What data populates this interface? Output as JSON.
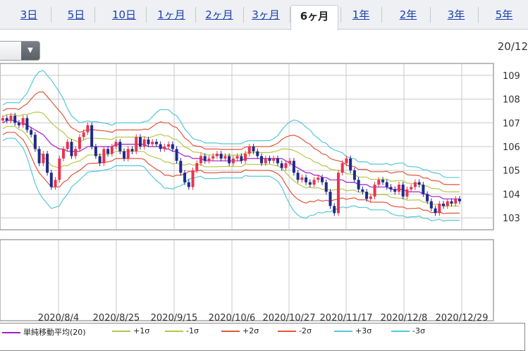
{
  "tabs": [
    {
      "label": "3日",
      "active": false
    },
    {
      "label": "5日",
      "active": false
    },
    {
      "label": "10日",
      "active": false
    },
    {
      "label": "1ヶ月",
      "active": false
    },
    {
      "label": "2ヶ月",
      "active": false
    },
    {
      "label": "3ヶ月",
      "active": false
    },
    {
      "label": "6ヶ月",
      "active": true
    },
    {
      "label": "1年",
      "active": false
    },
    {
      "label": "2年",
      "active": false
    },
    {
      "label": "3年",
      "active": false
    },
    {
      "label": "5年",
      "active": false
    }
  ],
  "corner_date": "20/12",
  "colors": {
    "up": "#e8344e",
    "down": "#1f2a8a",
    "sma": "#a020c8",
    "s1": "#b8c64a",
    "s2": "#e0573b",
    "s3": "#55c8d8"
  },
  "chart_data": {
    "type": "candlestick",
    "y_ticks": [
      "109",
      "108",
      "107",
      "106",
      "105",
      "104",
      "103"
    ],
    "ylim": [
      102.5,
      109.5
    ],
    "x_labels": [
      "2020/8/4",
      "2020/8/25",
      "2020/9/15",
      "2020/10/6",
      "2020/10/27",
      "2020/11/17",
      "2020/12/8",
      "2020/12/29"
    ],
    "grid": true,
    "legend": [
      {
        "label": "単純移動平均(20)",
        "color_key": "sma"
      },
      {
        "label": "+1σ",
        "color_key": "s1"
      },
      {
        "label": "-1σ",
        "color_key": "s1"
      },
      {
        "label": "+2σ",
        "color_key": "s2"
      },
      {
        "label": "-2σ",
        "color_key": "s2"
      },
      {
        "label": "+3σ",
        "color_key": "s3"
      },
      {
        "label": "-3σ",
        "color_key": "s3"
      }
    ],
    "legend_placement": "bottom",
    "close": [
      107.2,
      107.1,
      107.3,
      107.0,
      106.9,
      107.2,
      106.7,
      106.5,
      105.9,
      105.3,
      105.7,
      104.9,
      104.3,
      104.6,
      105.5,
      105.9,
      106.2,
      105.6,
      105.9,
      106.4,
      106.6,
      106.9,
      106.0,
      105.6,
      105.3,
      105.9,
      105.7,
      106.0,
      106.2,
      105.8,
      105.5,
      105.9,
      105.8,
      106.4,
      106.0,
      106.3,
      106.1,
      106.2,
      106.1,
      105.9,
      106.0,
      106.1,
      105.9,
      105.4,
      104.9,
      104.5,
      104.3,
      105.0,
      105.3,
      105.6,
      105.4,
      105.5,
      105.6,
      105.7,
      105.5,
      105.6,
      105.3,
      105.5,
      105.6,
      105.4,
      105.7,
      106.0,
      105.8,
      105.6,
      105.3,
      105.5,
      105.4,
      105.5,
      105.3,
      105.1,
      105.3,
      105.4,
      104.9,
      104.6,
      104.7,
      104.5,
      104.4,
      104.6,
      104.7,
      104.5,
      104.1,
      103.5,
      103.2,
      104.9,
      105.3,
      105.5,
      105.0,
      104.6,
      104.2,
      104.1,
      103.8,
      103.9,
      104.4,
      104.6,
      104.5,
      104.3,
      104.2,
      104.1,
      104.4,
      103.9,
      104.2,
      104.3,
      104.5,
      104.4,
      104.0,
      103.7,
      103.4,
      103.2,
      103.6,
      103.5,
      103.7,
      103.6,
      103.8,
      103.7
    ],
    "sma": [
      107.0,
      107.1,
      107.1,
      107.1,
      107.0,
      107.0,
      106.9,
      106.8,
      106.7,
      106.6,
      106.5,
      106.3,
      106.1,
      106.0,
      105.9,
      105.9,
      105.8,
      105.8,
      105.8,
      105.8,
      105.9,
      106.0,
      106.0,
      106.0,
      106.0,
      106.0,
      106.0,
      106.0,
      106.1,
      106.1,
      106.1,
      106.1,
      106.1,
      106.1,
      106.1,
      106.1,
      106.0,
      106.0,
      106.0,
      106.0,
      105.9,
      105.9,
      105.8,
      105.8,
      105.7,
      105.6,
      105.6,
      105.5,
      105.5,
      105.5,
      105.4,
      105.4,
      105.4,
      105.4,
      105.4,
      105.4,
      105.4,
      105.4,
      105.4,
      105.4,
      105.5,
      105.5,
      105.5,
      105.5,
      105.5,
      105.5,
      105.5,
      105.5,
      105.5,
      105.5,
      105.4,
      105.3,
      105.2,
      105.1,
      105.0,
      104.9,
      104.9,
      104.8,
      104.8,
      104.7,
      104.7,
      104.6,
      104.6,
      104.6,
      104.6,
      104.5,
      104.5,
      104.5,
      104.4,
      104.4,
      104.4,
      104.3,
      104.3,
      104.3,
      104.3,
      104.3,
      104.2,
      104.2,
      104.2,
      104.2,
      104.1,
      104.1,
      104.1,
      104.1,
      104.0,
      104.0,
      103.9,
      103.9,
      103.9,
      103.8,
      103.8,
      103.8,
      103.8,
      103.8
    ],
    "sigma": [
      0.25,
      0.25,
      0.25,
      0.25,
      0.28,
      0.35,
      0.45,
      0.6,
      0.75,
      0.85,
      0.9,
      0.9,
      0.9,
      0.85,
      0.8,
      0.7,
      0.6,
      0.5,
      0.45,
      0.4,
      0.38,
      0.36,
      0.35,
      0.35,
      0.34,
      0.33,
      0.32,
      0.3,
      0.3,
      0.3,
      0.3,
      0.3,
      0.3,
      0.3,
      0.3,
      0.32,
      0.36,
      0.42,
      0.48,
      0.52,
      0.55,
      0.55,
      0.53,
      0.5,
      0.45,
      0.38,
      0.32,
      0.28,
      0.26,
      0.25,
      0.25,
      0.25,
      0.25,
      0.25,
      0.24,
      0.24,
      0.24,
      0.24,
      0.24,
      0.24,
      0.24,
      0.25,
      0.25,
      0.25,
      0.25,
      0.25,
      0.25,
      0.28,
      0.32,
      0.4,
      0.5,
      0.58,
      0.64,
      0.66,
      0.66,
      0.64,
      0.6,
      0.56,
      0.52,
      0.5,
      0.48,
      0.45,
      0.42,
      0.4,
      0.38,
      0.36,
      0.34,
      0.33,
      0.32,
      0.32,
      0.32,
      0.32,
      0.32,
      0.32,
      0.32,
      0.33,
      0.34,
      0.36,
      0.37,
      0.37,
      0.36,
      0.35,
      0.35,
      0.34,
      0.34,
      0.34,
      0.34,
      0.33,
      0.32,
      0.31,
      0.3,
      0.3,
      0.3,
      0.3
    ]
  }
}
